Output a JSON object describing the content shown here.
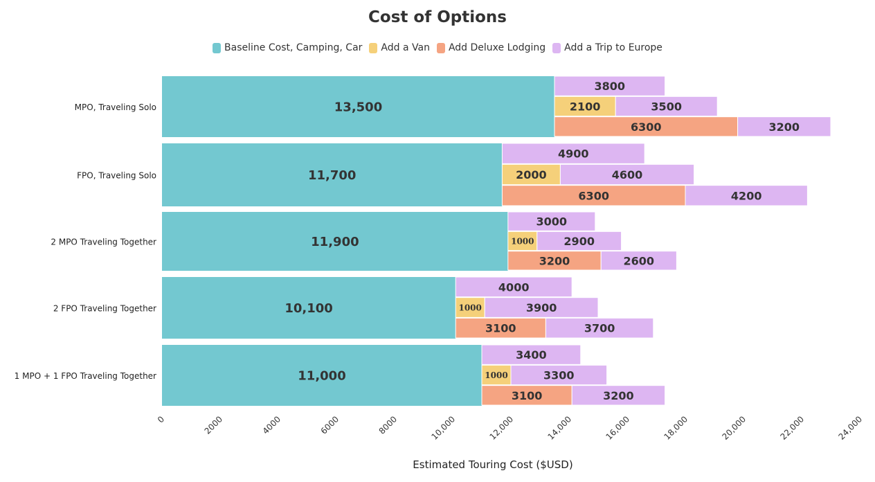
{
  "chart_data": {
    "type": "bar",
    "orientation": "horizontal",
    "title": "Cost of Options",
    "xlabel": "Estimated Touring Cost ($USD)",
    "ylabel": "",
    "xlim": [
      0,
      24000
    ],
    "xticks": [
      "0",
      "2000",
      "4000",
      "6000",
      "8000",
      "10,000",
      "12,000",
      "14,000",
      "16,000",
      "18,000",
      "20,000",
      "22,000",
      "24,000"
    ],
    "legend": [
      {
        "name": "Baseline Cost, Camping, Car",
        "color": "#73c8d0"
      },
      {
        "name": "Add a Van",
        "color": "#f5d07a"
      },
      {
        "name": "Add Deluxe Lodging",
        "color": "#f5a482"
      },
      {
        "name": "Add a Trip to Europe",
        "color": "#ddb6f2"
      }
    ],
    "legend_position": "top-center",
    "groups": [
      {
        "category": "MPO, Traveling Solo",
        "baseline": 13500,
        "baseline_label": "13,500",
        "rows": [
          [
            {
              "series": "Add a Trip to Europe",
              "value": 3800
            }
          ],
          [
            {
              "series": "Add a Van",
              "value": 2100
            },
            {
              "series": "Add a Trip to Europe",
              "value": 3500
            }
          ],
          [
            {
              "series": "Add Deluxe Lodging",
              "value": 6300
            },
            {
              "series": "Add a Trip to Europe",
              "value": 3200
            }
          ]
        ]
      },
      {
        "category": "FPO, Traveling Solo",
        "baseline": 11700,
        "baseline_label": "11,700",
        "rows": [
          [
            {
              "series": "Add a Trip to Europe",
              "value": 4900
            }
          ],
          [
            {
              "series": "Add a Van",
              "value": 2000
            },
            {
              "series": "Add a Trip to Europe",
              "value": 4600
            }
          ],
          [
            {
              "series": "Add Deluxe Lodging",
              "value": 6300
            },
            {
              "series": "Add a Trip to Europe",
              "value": 4200
            }
          ]
        ]
      },
      {
        "category": "2 MPO Traveling Together",
        "baseline": 11900,
        "baseline_label": "11,900",
        "rows": [
          [
            {
              "series": "Add a Trip to Europe",
              "value": 3000
            }
          ],
          [
            {
              "series": "Add a Van",
              "value": 1000
            },
            {
              "series": "Add a Trip to Europe",
              "value": 2900
            }
          ],
          [
            {
              "series": "Add Deluxe Lodging",
              "value": 3200
            },
            {
              "series": "Add a Trip to Europe",
              "value": 2600
            }
          ]
        ]
      },
      {
        "category": "2 FPO Traveling Together",
        "baseline": 10100,
        "baseline_label": "10,100",
        "rows": [
          [
            {
              "series": "Add a Trip to Europe",
              "value": 4000
            }
          ],
          [
            {
              "series": "Add a Van",
              "value": 1000
            },
            {
              "series": "Add a Trip to Europe",
              "value": 3900
            }
          ],
          [
            {
              "series": "Add Deluxe Lodging",
              "value": 3100
            },
            {
              "series": "Add a Trip to Europe",
              "value": 3700
            }
          ]
        ]
      },
      {
        "category": "1 MPO + 1 FPO Traveling Together",
        "baseline": 11000,
        "baseline_label": "11,000",
        "rows": [
          [
            {
              "series": "Add a Trip to Europe",
              "value": 3400
            }
          ],
          [
            {
              "series": "Add a Van",
              "value": 1000
            },
            {
              "series": "Add a Trip to Europe",
              "value": 3300
            }
          ],
          [
            {
              "series": "Add Deluxe Lodging",
              "value": 3100
            },
            {
              "series": "Add a Trip to Europe",
              "value": 3200
            }
          ]
        ]
      }
    ]
  }
}
